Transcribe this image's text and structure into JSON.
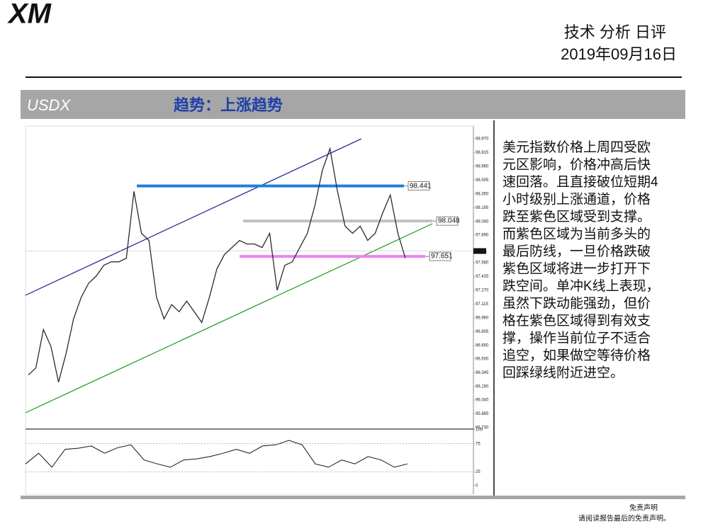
{
  "header": {
    "logo": "XM",
    "title": "技术 分析 日评",
    "date": "2019年09月16日"
  },
  "banner": {
    "symbol": "USDX",
    "trend": "趋势：上涨趋势"
  },
  "chart_data": {
    "type": "line",
    "values": [
      96.32,
      96.4,
      96.83,
      96.64,
      96.24,
      96.56,
      96.95,
      97.19,
      97.35,
      97.43,
      97.55,
      97.59,
      97.59,
      97.63,
      98.38,
      97.91,
      97.83,
      97.19,
      96.95,
      97.11,
      97.03,
      97.15,
      97.03,
      96.91,
      97.19,
      97.51,
      97.67,
      97.75,
      97.83,
      97.79,
      97.79,
      97.75,
      97.91,
      97.27,
      97.55,
      97.59,
      97.75,
      97.91,
      98.22,
      98.62,
      98.86,
      98.38,
      97.99,
      97.91,
      97.99,
      97.83,
      97.91,
      98.14,
      98.34,
      97.91,
      97.63
    ],
    "color": "#2a2a2a",
    "ylim": [
      95.73,
      98.97
    ],
    "yticks": [
      {
        "value": 98.97,
        "label": "98.970"
      },
      98.815,
      {
        "value": 98.66,
        "label": "98.660"
      },
      98.505,
      {
        "value": 98.35,
        "label": "98.350"
      },
      98.195,
      {
        "value": 98.04,
        "label": "98.040"
      },
      {
        "value": 97.89,
        "label": "97.890"
      },
      {
        "value": 97.58,
        "label": "97.580"
      },
      97.425,
      {
        "value": 97.27,
        "label": "97.270"
      },
      97.115,
      {
        "value": 96.96,
        "label": "96.960"
      },
      96.805,
      {
        "value": 96.65,
        "label": "96.650"
      },
      {
        "value": 96.5,
        "label": "96.500"
      },
      96.345,
      {
        "value": 96.19,
        "label": "96.190"
      },
      {
        "value": 96.04,
        "label": "96.040"
      },
      95.885,
      {
        "value": 95.73,
        "label": "95.730"
      }
    ],
    "levels": [
      {
        "value": 98.441,
        "color": "#1e7fd8"
      },
      {
        "value": 98.048,
        "color": "#c0c0c0"
      },
      {
        "value": 97.651,
        "color": "#ee82ee"
      }
    ],
    "last_price": 97.711,
    "oscillator": {
      "values": [
        39,
        58,
        33,
        65,
        67,
        71,
        58,
        68,
        73,
        46,
        39,
        33,
        46,
        48,
        52,
        58,
        65,
        58,
        71,
        73,
        81,
        73,
        39,
        33,
        46,
        39,
        52,
        46,
        33,
        39
      ],
      "ylim": [
        0,
        100
      ],
      "yticks": [
        100,
        75,
        25,
        0
      ],
      "grid_levels": [
        75,
        25
      ]
    }
  },
  "commentary": [
    "美元指数价格上周四受欧",
    "元区影响，价格冲高后快",
    "速回落。且直接破位短期4",
    "小时级别上涨通道，价格",
    "跌至紫色区域受到支撑。",
    "而紫色区域为当前多头的",
    "最后防线，一旦价格跌破",
    "紫色区域将进一步打开下",
    "跌空间。单冲K线上表现，",
    "虽然下跌动能强劲，但价",
    "格在紫色区域得到有效支",
    "撑，操作当前位子不适合",
    "追空，如果做空等待价格",
    "回踩绿线附近进空。"
  ],
  "footer": {
    "line1": "免责声明",
    "line2": "请阅读报告最后的免责声明。"
  }
}
